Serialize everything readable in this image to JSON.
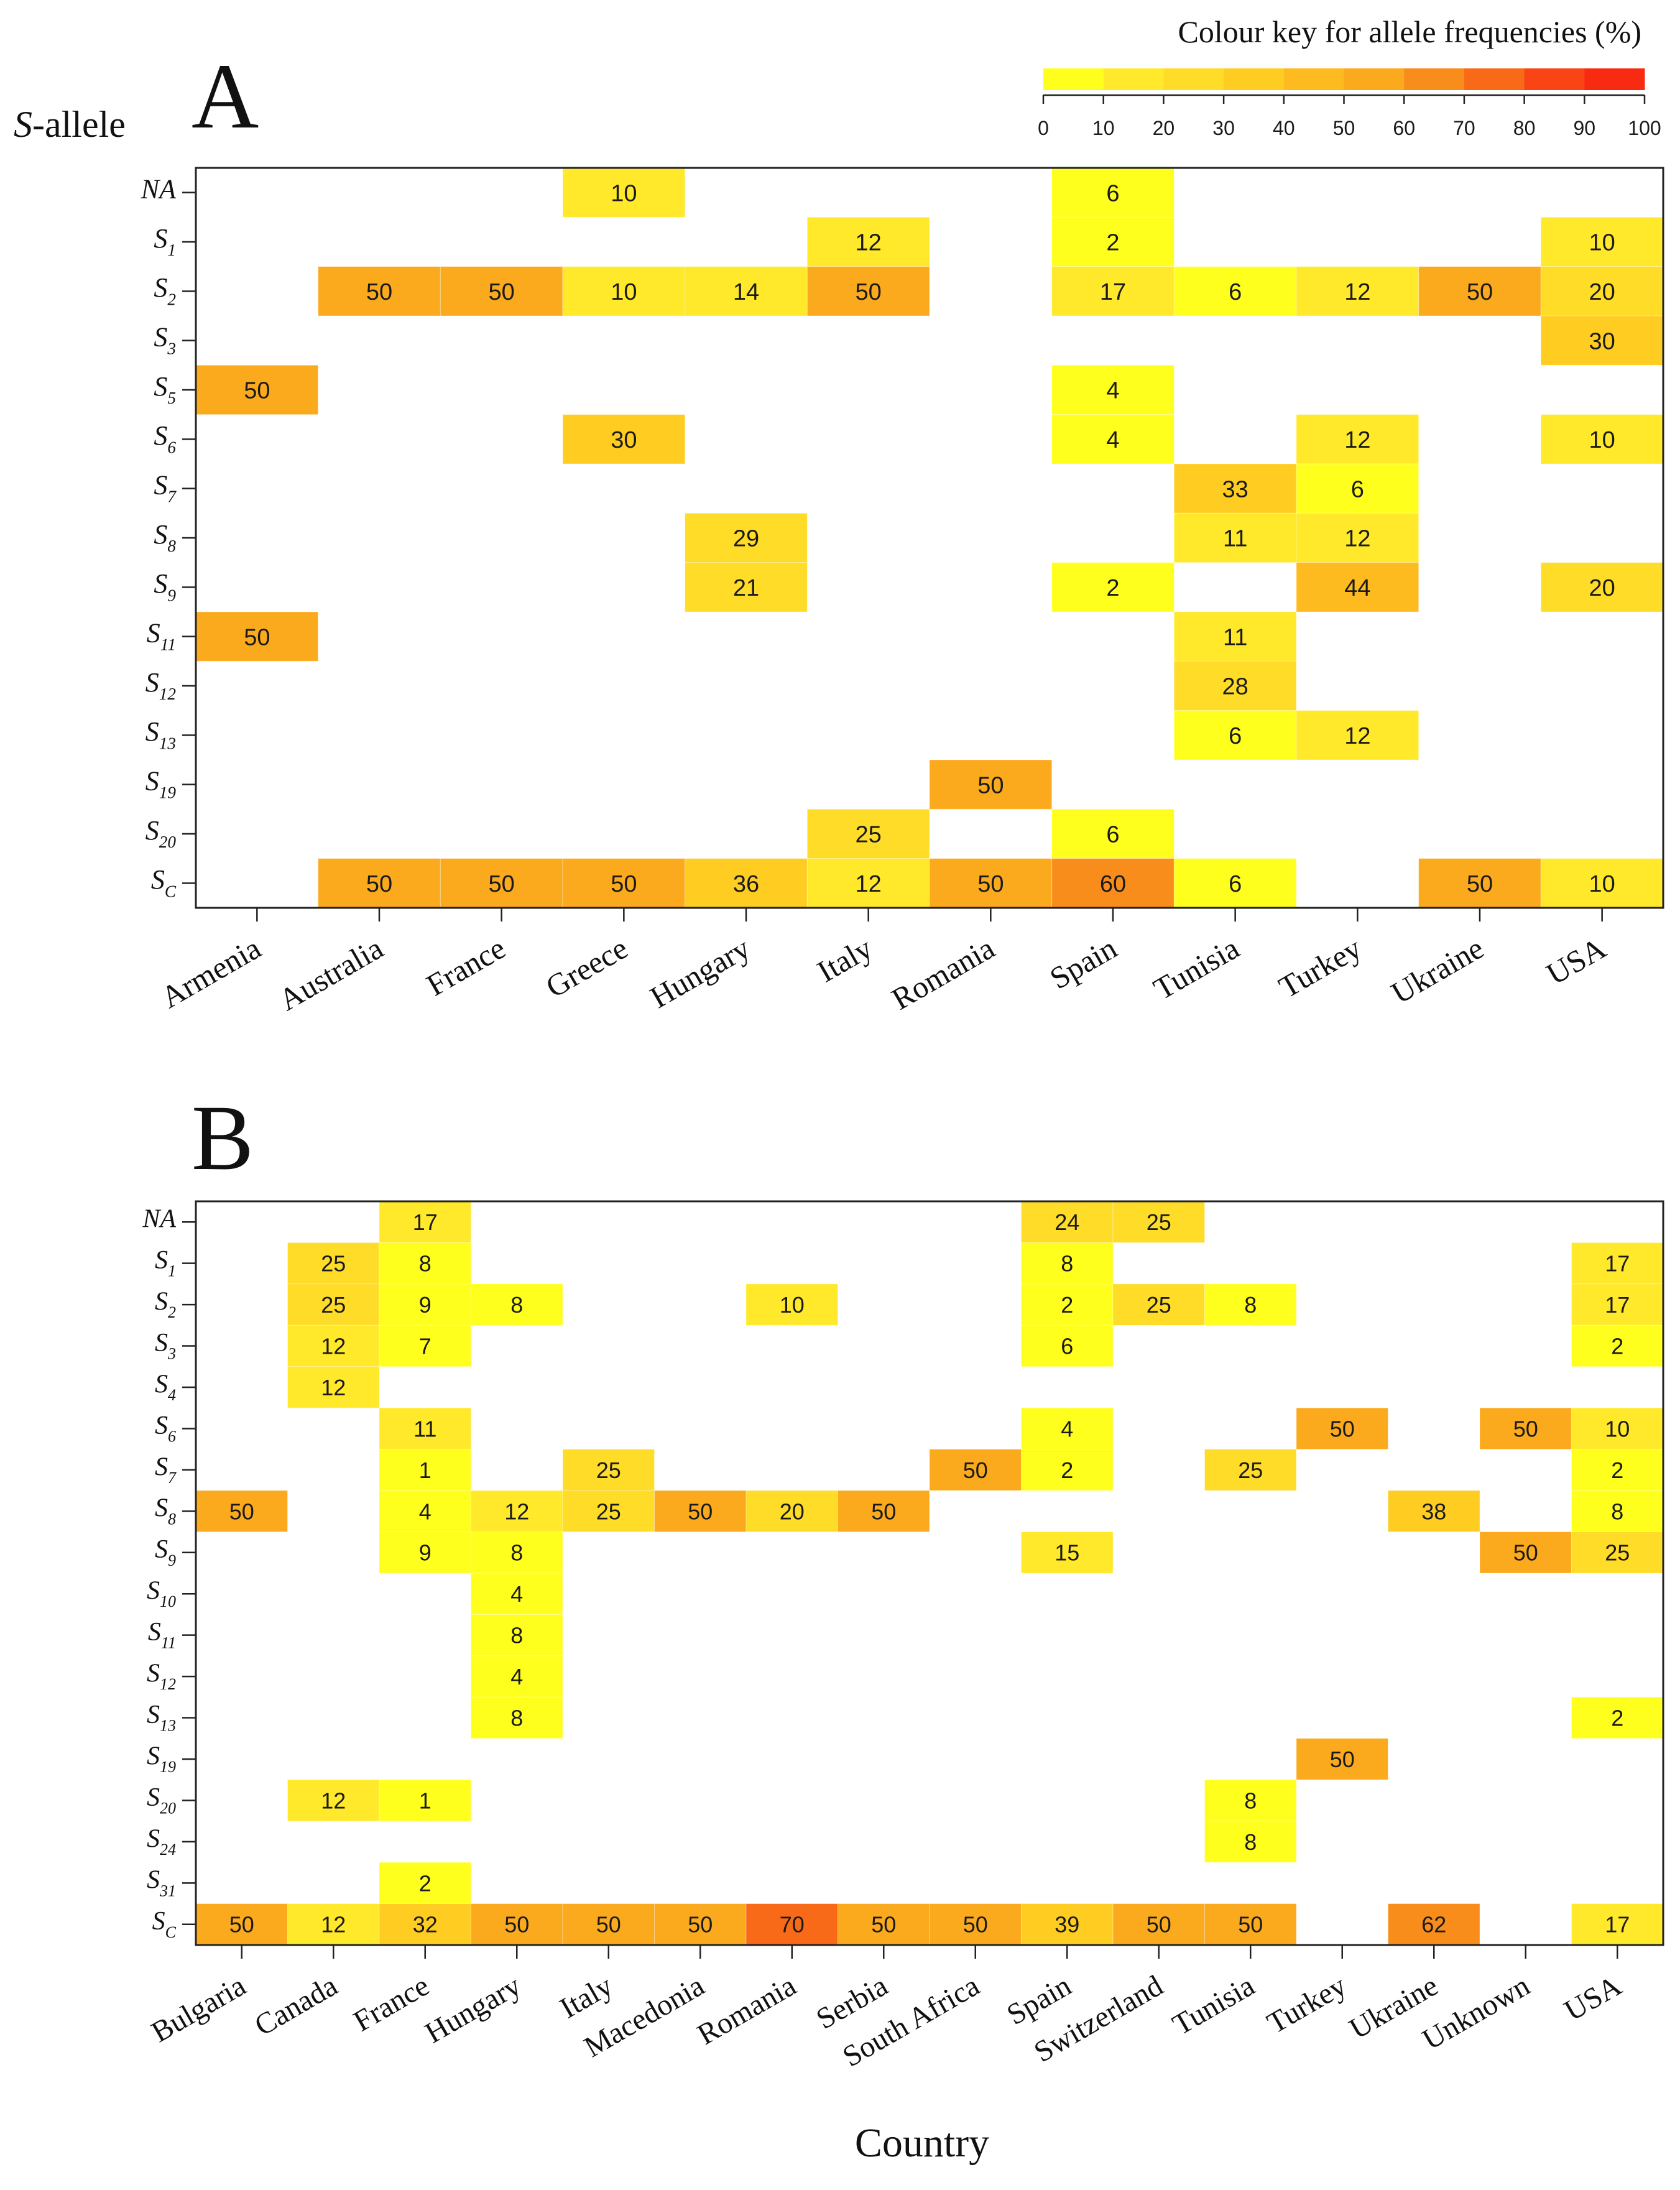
{
  "figure": {
    "y_axis_title": "S-allele",
    "x_axis_title": "Country"
  },
  "colour_key": {
    "title": "Colour key for allele frequencies (%)",
    "ticks": [
      0,
      10,
      20,
      30,
      40,
      50,
      60,
      70,
      80,
      90,
      100
    ],
    "colors": [
      "#ffff1e",
      "#ffe92a",
      "#ffdc28",
      "#ffcd22",
      "#fdbb20",
      "#fbaa1e",
      "#f98d1c",
      "#f96a18",
      "#f94515",
      "#f92a12"
    ]
  },
  "chart_data": [
    {
      "type": "heatmap",
      "title": "A",
      "xlabel": "",
      "ylabel": "S-allele",
      "value_range": [
        0,
        100
      ],
      "categories": [
        "Armenia",
        "Australia",
        "France",
        "Greece",
        "Hungary",
        "Italy",
        "Romania",
        "Spain",
        "Tunisia",
        "Turkey",
        "Ukraine",
        "USA"
      ],
      "rows": [
        {
          "base": "NA",
          "sub": "",
          "values": [
            null,
            null,
            null,
            10,
            null,
            null,
            null,
            6,
            null,
            null,
            null,
            null
          ]
        },
        {
          "base": "S",
          "sub": "1",
          "values": [
            null,
            null,
            null,
            null,
            null,
            12,
            null,
            2,
            null,
            null,
            null,
            10
          ]
        },
        {
          "base": "S",
          "sub": "2",
          "values": [
            null,
            50,
            50,
            10,
            14,
            50,
            null,
            17,
            6,
            12,
            50,
            20
          ]
        },
        {
          "base": "S",
          "sub": "3",
          "values": [
            null,
            null,
            null,
            null,
            null,
            null,
            null,
            null,
            null,
            null,
            null,
            30
          ]
        },
        {
          "base": "S",
          "sub": "5",
          "values": [
            50,
            null,
            null,
            null,
            null,
            null,
            null,
            4,
            null,
            null,
            null,
            null
          ]
        },
        {
          "base": "S",
          "sub": "6",
          "values": [
            null,
            null,
            null,
            30,
            null,
            null,
            null,
            4,
            null,
            12,
            null,
            10
          ]
        },
        {
          "base": "S",
          "sub": "7",
          "values": [
            null,
            null,
            null,
            null,
            null,
            null,
            null,
            null,
            33,
            6,
            null,
            null
          ]
        },
        {
          "base": "S",
          "sub": "8",
          "values": [
            null,
            null,
            null,
            null,
            29,
            null,
            null,
            null,
            11,
            12,
            null,
            null
          ]
        },
        {
          "base": "S",
          "sub": "9",
          "values": [
            null,
            null,
            null,
            null,
            21,
            null,
            null,
            2,
            null,
            44,
            null,
            20
          ]
        },
        {
          "base": "S",
          "sub": "11",
          "values": [
            50,
            null,
            null,
            null,
            null,
            null,
            null,
            null,
            11,
            null,
            null,
            null
          ]
        },
        {
          "base": "S",
          "sub": "12",
          "values": [
            null,
            null,
            null,
            null,
            null,
            null,
            null,
            null,
            28,
            null,
            null,
            null
          ]
        },
        {
          "base": "S",
          "sub": "13",
          "values": [
            null,
            null,
            null,
            null,
            null,
            null,
            null,
            null,
            6,
            12,
            null,
            null
          ]
        },
        {
          "base": "S",
          "sub": "19",
          "values": [
            null,
            null,
            null,
            null,
            null,
            null,
            50,
            null,
            null,
            null,
            null,
            null
          ]
        },
        {
          "base": "S",
          "sub": "20",
          "values": [
            null,
            null,
            null,
            null,
            null,
            25,
            null,
            6,
            null,
            null,
            null,
            null
          ]
        },
        {
          "base": "S",
          "sub": "C",
          "values": [
            null,
            50,
            50,
            50,
            36,
            12,
            50,
            60,
            6,
            null,
            50,
            10
          ]
        }
      ]
    },
    {
      "type": "heatmap",
      "title": "B",
      "xlabel": "Country",
      "ylabel": "",
      "value_range": [
        0,
        100
      ],
      "categories": [
        "Bulgaria",
        "Canada",
        "France",
        "Hungary",
        "Italy",
        "Macedonia",
        "Romania",
        "Serbia",
        "South Africa",
        "Spain",
        "Switzerland",
        "Tunisia",
        "Turkey",
        "Ukraine",
        "Unknown",
        "USA"
      ],
      "rows": [
        {
          "base": "NA",
          "sub": "",
          "values": [
            null,
            null,
            17,
            null,
            null,
            null,
            null,
            null,
            null,
            24,
            25,
            null,
            null,
            null,
            null,
            null
          ]
        },
        {
          "base": "S",
          "sub": "1",
          "values": [
            null,
            25,
            8,
            null,
            null,
            null,
            null,
            null,
            null,
            8,
            null,
            null,
            null,
            null,
            null,
            17
          ]
        },
        {
          "base": "S",
          "sub": "2",
          "values": [
            null,
            25,
            9,
            8,
            null,
            null,
            10,
            null,
            null,
            2,
            25,
            8,
            null,
            null,
            null,
            17
          ]
        },
        {
          "base": "S",
          "sub": "3",
          "values": [
            null,
            12,
            7,
            null,
            null,
            null,
            null,
            null,
            null,
            6,
            null,
            null,
            null,
            null,
            null,
            2
          ]
        },
        {
          "base": "S",
          "sub": "4",
          "values": [
            null,
            12,
            null,
            null,
            null,
            null,
            null,
            null,
            null,
            null,
            null,
            null,
            null,
            null,
            null,
            null
          ]
        },
        {
          "base": "S",
          "sub": "6",
          "values": [
            null,
            null,
            11,
            null,
            null,
            null,
            null,
            null,
            null,
            4,
            null,
            null,
            50,
            null,
            50,
            10
          ]
        },
        {
          "base": "S",
          "sub": "7",
          "values": [
            null,
            null,
            1,
            null,
            25,
            null,
            null,
            null,
            50,
            2,
            null,
            25,
            null,
            null,
            null,
            2
          ]
        },
        {
          "base": "S",
          "sub": "8",
          "values": [
            50,
            null,
            4,
            12,
            25,
            50,
            20,
            50,
            null,
            null,
            null,
            null,
            null,
            38,
            null,
            8
          ]
        },
        {
          "base": "S",
          "sub": "9",
          "values": [
            null,
            null,
            9,
            8,
            null,
            null,
            null,
            null,
            null,
            15,
            null,
            null,
            null,
            null,
            50,
            25
          ]
        },
        {
          "base": "S",
          "sub": "10",
          "values": [
            null,
            null,
            null,
            4,
            null,
            null,
            null,
            null,
            null,
            null,
            null,
            null,
            null,
            null,
            null,
            null
          ]
        },
        {
          "base": "S",
          "sub": "11",
          "values": [
            null,
            null,
            null,
            8,
            null,
            null,
            null,
            null,
            null,
            null,
            null,
            null,
            null,
            null,
            null,
            null
          ]
        },
        {
          "base": "S",
          "sub": "12",
          "values": [
            null,
            null,
            null,
            4,
            null,
            null,
            null,
            null,
            null,
            null,
            null,
            null,
            null,
            null,
            null,
            null
          ]
        },
        {
          "base": "S",
          "sub": "13",
          "values": [
            null,
            null,
            null,
            8,
            null,
            null,
            null,
            null,
            null,
            null,
            null,
            null,
            null,
            null,
            null,
            2
          ]
        },
        {
          "base": "S",
          "sub": "19",
          "values": [
            null,
            null,
            null,
            null,
            null,
            null,
            null,
            null,
            null,
            null,
            null,
            null,
            50,
            null,
            null,
            null
          ]
        },
        {
          "base": "S",
          "sub": "20",
          "values": [
            null,
            12,
            1,
            null,
            null,
            null,
            null,
            null,
            null,
            null,
            null,
            8,
            null,
            null,
            null,
            null
          ]
        },
        {
          "base": "S",
          "sub": "24",
          "values": [
            null,
            null,
            null,
            null,
            null,
            null,
            null,
            null,
            null,
            null,
            null,
            8,
            null,
            null,
            null,
            null
          ]
        },
        {
          "base": "S",
          "sub": "31",
          "values": [
            null,
            null,
            2,
            null,
            null,
            null,
            null,
            null,
            null,
            null,
            null,
            null,
            null,
            null,
            null,
            null
          ]
        },
        {
          "base": "S",
          "sub": "C",
          "values": [
            50,
            12,
            32,
            50,
            50,
            50,
            70,
            50,
            50,
            39,
            50,
            50,
            null,
            62,
            null,
            17
          ]
        }
      ]
    }
  ]
}
